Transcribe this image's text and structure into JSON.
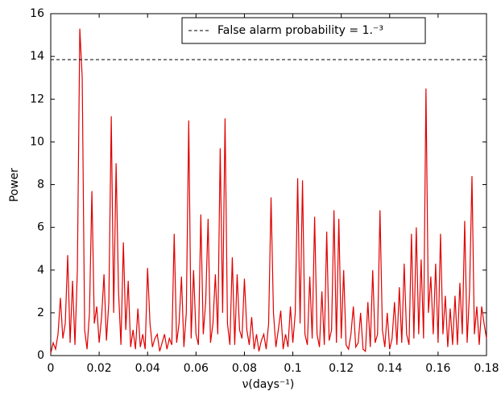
{
  "chart_data": {
    "type": "line",
    "xlabel": "ν(days⁻¹)",
    "ylabel": "Power",
    "xlim": [
      0,
      0.18
    ],
    "ylim": [
      0,
      16
    ],
    "xticks": [
      0,
      0.02,
      0.04,
      0.06,
      0.08,
      0.1,
      0.12,
      0.14,
      0.16,
      0.18
    ],
    "yticks": [
      0,
      2,
      4,
      6,
      8,
      10,
      12,
      14,
      16
    ],
    "threshold": {
      "name": "False alarm probability = 1.⁻³",
      "value": 13.85,
      "color": "#000000"
    },
    "series": [
      {
        "color": "#e00000",
        "x": [
          0,
          0.001,
          0.002,
          0.003,
          0.004,
          0.005,
          0.006,
          0.007,
          0.008,
          0.009,
          0.01,
          0.011,
          0.012,
          0.013,
          0.014,
          0.015,
          0.016,
          0.017,
          0.018,
          0.019,
          0.02,
          0.021,
          0.022,
          0.023,
          0.024,
          0.025,
          0.026,
          0.027,
          0.028,
          0.029,
          0.03,
          0.031,
          0.032,
          0.033,
          0.034,
          0.035,
          0.036,
          0.037,
          0.038,
          0.039,
          0.04,
          0.041,
          0.042,
          0.043,
          0.044,
          0.045,
          0.046,
          0.047,
          0.048,
          0.049,
          0.05,
          0.051,
          0.052,
          0.053,
          0.054,
          0.055,
          0.056,
          0.057,
          0.058,
          0.059,
          0.06,
          0.061,
          0.062,
          0.063,
          0.064,
          0.065,
          0.066,
          0.067,
          0.068,
          0.069,
          0.07,
          0.071,
          0.072,
          0.073,
          0.074,
          0.075,
          0.076,
          0.077,
          0.078,
          0.079,
          0.08,
          0.081,
          0.082,
          0.083,
          0.084,
          0.085,
          0.086,
          0.087,
          0.088,
          0.089,
          0.09,
          0.091,
          0.092,
          0.093,
          0.094,
          0.095,
          0.096,
          0.097,
          0.098,
          0.099,
          0.1,
          0.101,
          0.102,
          0.103,
          0.104,
          0.105,
          0.106,
          0.107,
          0.108,
          0.109,
          0.11,
          0.111,
          0.112,
          0.113,
          0.114,
          0.115,
          0.116,
          0.117,
          0.118,
          0.119,
          0.12,
          0.121,
          0.122,
          0.123,
          0.124,
          0.125,
          0.126,
          0.127,
          0.128,
          0.129,
          0.13,
          0.131,
          0.132,
          0.133,
          0.134,
          0.135,
          0.136,
          0.137,
          0.138,
          0.139,
          0.14,
          0.141,
          0.142,
          0.143,
          0.144,
          0.145,
          0.146,
          0.147,
          0.148,
          0.149,
          0.15,
          0.151,
          0.152,
          0.153,
          0.154,
          0.155,
          0.156,
          0.157,
          0.158,
          0.159,
          0.16,
          0.161,
          0.162,
          0.163,
          0.164,
          0.165,
          0.166,
          0.167,
          0.168,
          0.169,
          0.17,
          0.171,
          0.172,
          0.173,
          0.174,
          0.175,
          0.176,
          0.177,
          0.178,
          0.179,
          0.18
        ],
        "values": [
          0.1,
          0.6,
          0.3,
          1.0,
          2.7,
          0.8,
          1.5,
          4.7,
          0.6,
          3.5,
          0.5,
          4.0,
          15.3,
          13.0,
          1.2,
          0.3,
          2.0,
          7.7,
          1.5,
          2.3,
          0.6,
          1.8,
          3.8,
          0.7,
          2.5,
          11.2,
          2.0,
          9.0,
          3.0,
          0.5,
          5.3,
          1.2,
          3.5,
          0.4,
          1.2,
          0.3,
          2.2,
          0.4,
          1.0,
          0.3,
          4.1,
          1.5,
          0.4,
          0.8,
          1.0,
          0.2,
          0.6,
          1.0,
          0.3,
          0.8,
          0.5,
          5.7,
          0.6,
          1.5,
          3.7,
          0.4,
          2.0,
          11.0,
          0.8,
          4.0,
          1.0,
          0.5,
          6.6,
          1.0,
          2.5,
          6.4,
          0.6,
          1.5,
          3.8,
          1.0,
          9.7,
          2.0,
          11.1,
          1.5,
          0.5,
          4.6,
          0.5,
          3.8,
          1.2,
          0.8,
          3.6,
          1.2,
          0.5,
          1.8,
          0.3,
          1.0,
          0.2,
          0.7,
          1.0,
          0.3,
          1.5,
          7.4,
          2.0,
          0.4,
          1.2,
          2.1,
          0.3,
          1.0,
          0.4,
          2.3,
          0.6,
          2.0,
          8.3,
          1.5,
          8.2,
          1.0,
          0.5,
          3.7,
          0.8,
          6.5,
          1.0,
          0.4,
          3.0,
          0.5,
          5.8,
          0.7,
          1.2,
          6.8,
          0.6,
          6.4,
          0.8,
          4.0,
          0.5,
          0.3,
          1.0,
          2.3,
          0.4,
          0.6,
          2.0,
          0.3,
          0.2,
          2.5,
          0.4,
          4.0,
          0.6,
          1.0,
          6.8,
          1.2,
          0.4,
          2.0,
          0.3,
          0.8,
          2.5,
          0.5,
          3.2,
          0.6,
          4.3,
          1.0,
          0.5,
          5.7,
          0.8,
          6.0,
          1.0,
          4.5,
          0.8,
          12.5,
          2.0,
          3.7,
          1.0,
          4.3,
          0.6,
          5.7,
          1.0,
          2.8,
          0.4,
          2.2,
          0.5,
          2.8,
          0.5,
          3.4,
          1.0,
          6.3,
          0.6,
          3.0,
          8.4,
          1.0,
          2.3,
          0.5,
          2.3,
          1.5,
          0.8
        ]
      }
    ]
  }
}
